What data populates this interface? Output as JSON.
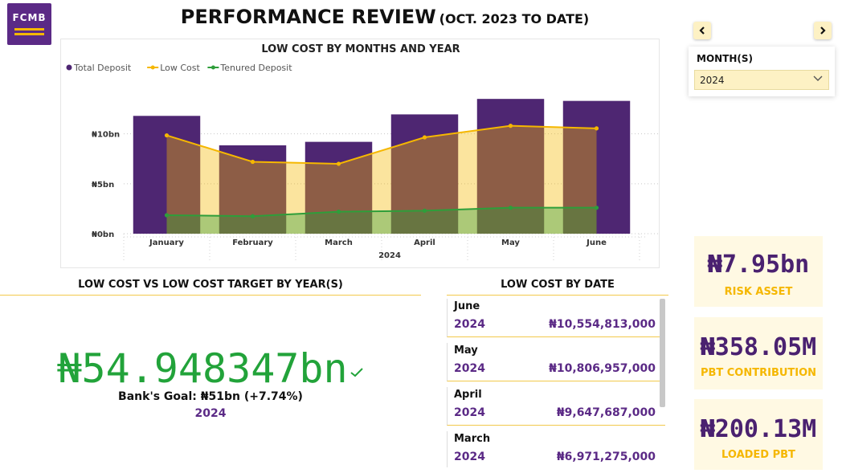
{
  "logo": {
    "text": "FCMB"
  },
  "header": {
    "title": "PERFORMANCE REVIEW",
    "subtitle": "(OCT. 2023 TO DATE)"
  },
  "colors": {
    "purple": "#4e2672",
    "gold": "#f5b700",
    "green": "#2e9e3a",
    "brown": "#8b6b4a",
    "accent_text": "#5b2a86"
  },
  "slicer": {
    "label": "MONTH(S)",
    "value": "2024",
    "prev_icon": "chevron-left-icon",
    "next_icon": "chevron-right-icon"
  },
  "chart_data": {
    "type": "bar",
    "title": "LOW COST BY MONTHS AND YEAR",
    "xlabel": "2024",
    "ylabel": "",
    "categories": [
      "January",
      "February",
      "March",
      "April",
      "May",
      "June"
    ],
    "ylim": [
      0,
      14.8
    ],
    "yticks": [
      {
        "value": 0,
        "label": "₦0bn"
      },
      {
        "value": 5,
        "label": "₦5bn"
      },
      {
        "value": 10,
        "label": "₦10bn"
      }
    ],
    "legend_position": "top-left",
    "grid": true,
    "series": [
      {
        "name": "Total Deposit",
        "kind": "bar",
        "color": "#4e2672",
        "values": [
          11.8,
          8.85,
          9.2,
          11.95,
          13.5,
          13.3
        ]
      },
      {
        "name": "Low Cost",
        "kind": "area-line",
        "color": "#f5b700",
        "values": [
          9.85,
          7.2,
          7.0,
          9.65,
          10.81,
          10.55
        ]
      },
      {
        "name": "Tenured Deposit",
        "kind": "area-line",
        "color": "#2e9e3a",
        "values": [
          1.85,
          1.75,
          2.2,
          2.3,
          2.6,
          2.6
        ]
      }
    ]
  },
  "target_section": {
    "title": "LOW COST VS LOW COST TARGET BY YEAR(S)",
    "value": "₦54.948347bn",
    "goal_text": "Bank's Goal: ₦51bn (+7.74%)",
    "year": "2024",
    "status_icon": "checkmark-icon"
  },
  "date_table": {
    "title": "LOW COST BY DATE",
    "rows": [
      {
        "month": "June",
        "year": "2024",
        "amount": "₦10,554,813,000"
      },
      {
        "month": "May",
        "year": "2024",
        "amount": "₦10,806,957,000"
      },
      {
        "month": "April",
        "year": "2024",
        "amount": "₦9,647,687,000"
      },
      {
        "month": "March",
        "year": "2024",
        "amount": "₦6,971,275,000"
      }
    ]
  },
  "kpis": [
    {
      "value": "₦7.95bn",
      "label": "RISK ASSET"
    },
    {
      "value": "₦358.05M",
      "label": "PBT CONTRIBUTION"
    },
    {
      "value": "₦200.13M",
      "label": "LOADED PBT"
    }
  ]
}
